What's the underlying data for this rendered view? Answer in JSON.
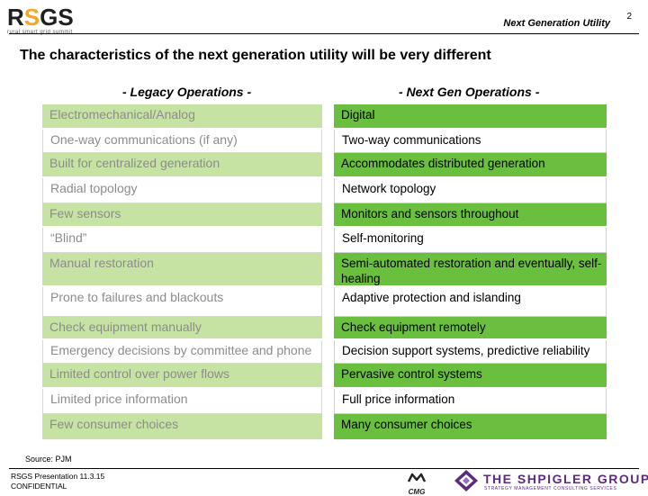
{
  "logo": {
    "text": "RSGS",
    "tagline": "rural smart grid summit"
  },
  "header": {
    "title": "Next Generation Utility",
    "page_number": "2"
  },
  "slide": {
    "title": "The characteristics of the next generation utility will be very different"
  },
  "legacy": {
    "heading": "- Legacy Operations -",
    "rows": [
      "Electromechanical/Analog",
      "One-way communications (if any)",
      "Built for centralized generation",
      "Radial topology",
      "Few sensors",
      "“Blind”",
      "Manual restoration",
      "Prone to failures and blackouts",
      "Check equipment manually",
      "Emergency decisions by committee and phone",
      "Limited control over power flows",
      "Limited price information",
      "Few consumer choices"
    ]
  },
  "next_gen": {
    "heading": "- Next Gen Operations -",
    "rows": [
      "Digital",
      "Two-way communications",
      "Accommodates distributed generation",
      "Network topology",
      "Monitors and sensors throughout",
      "Self-monitoring",
      "Semi-automated restoration and eventually, self-healing",
      "Adaptive protection and islanding",
      "Check equipment remotely",
      "Decision support systems, predictive reliability",
      "Pervasive control systems",
      "Full price information",
      "Many consumer choices"
    ]
  },
  "source": "Source: PJM",
  "footer": {
    "line1": "RSGS Presentation 11.3.15",
    "line2": "CONFIDENTIAL"
  },
  "partner_logos": {
    "cmg": "CMG",
    "shpigler_name": "THE SHPIGLER GROUP",
    "shpigler_tagline": "STRATEGY MANAGEMENT CONSULTING SERVICES"
  },
  "colors": {
    "legacy_green": "#c6e3a3",
    "next_green": "#6abf3e",
    "legacy_text": "#8c8c8c",
    "shpigler_purple": "#5b2c7f",
    "logo_accent": "#f5a623"
  }
}
